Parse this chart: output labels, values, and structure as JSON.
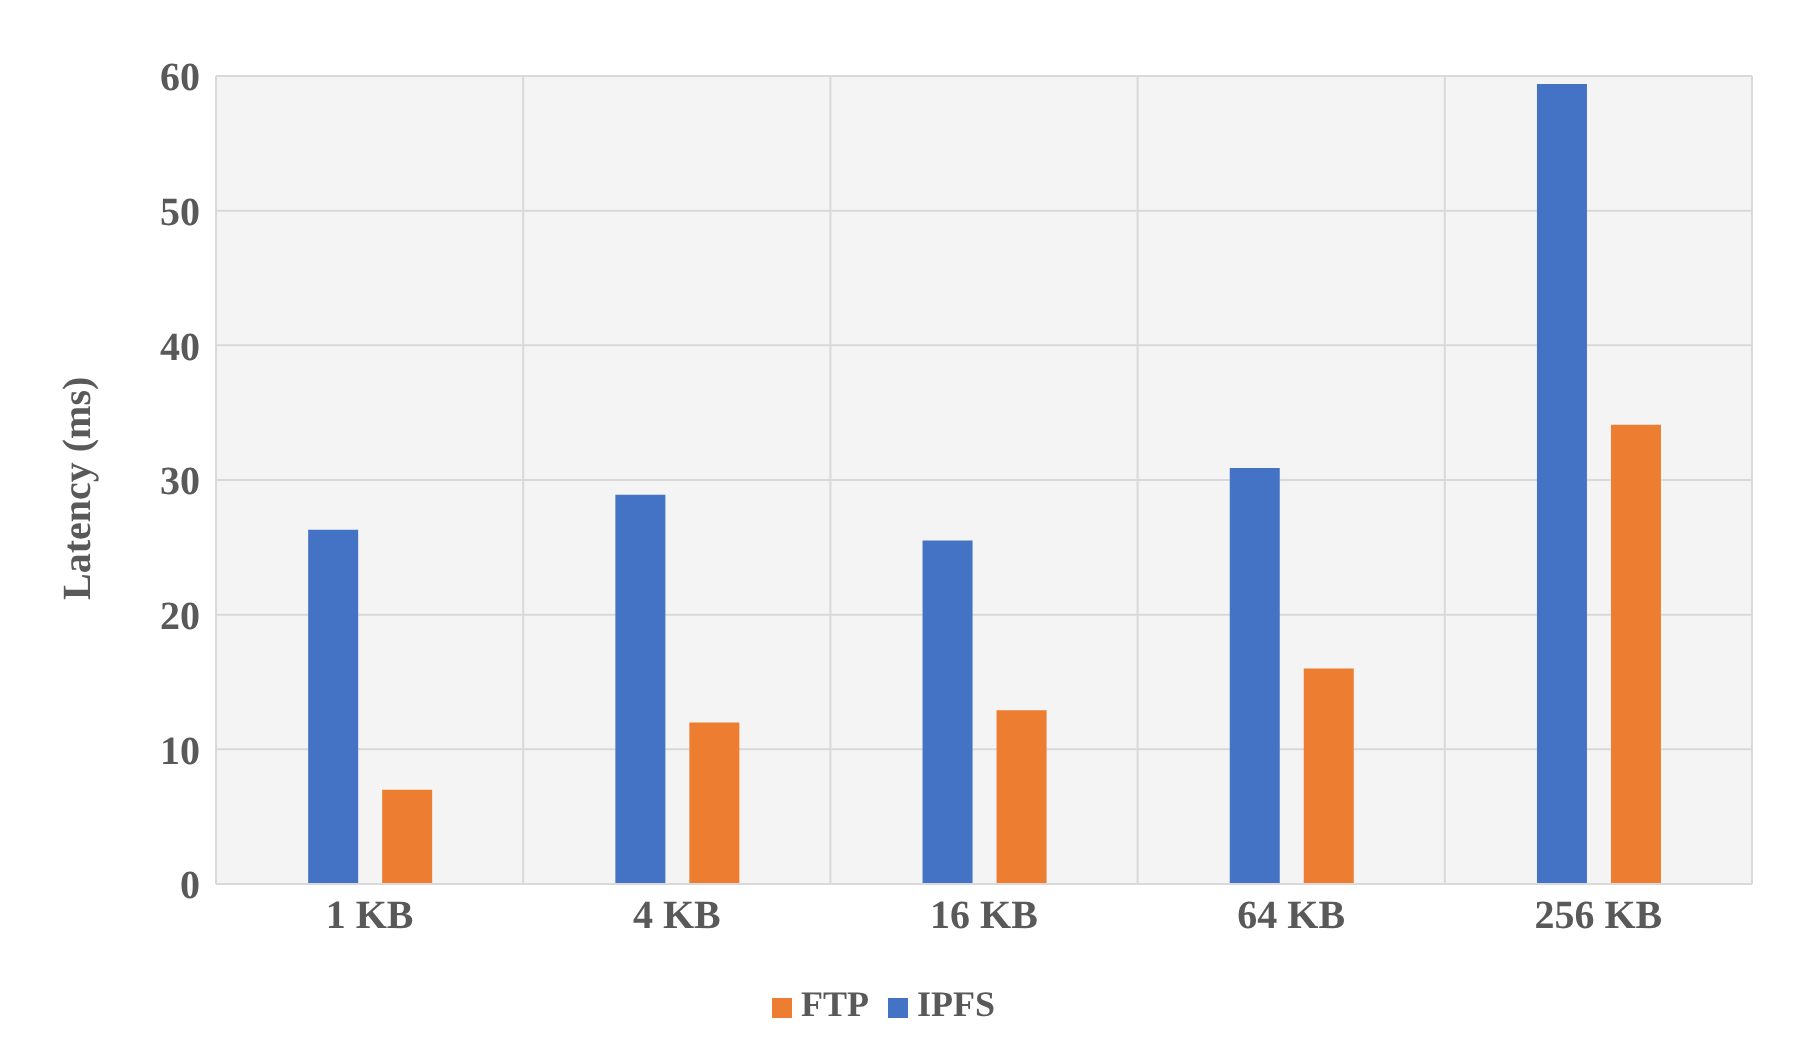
{
  "chart_data": {
    "type": "bar",
    "ylabel": "Latency (ms)",
    "categories": [
      "1 KB",
      "4 KB",
      "16 KB",
      "64 KB",
      "256 KB"
    ],
    "series": [
      {
        "name": "IPFS",
        "color": "#4472c4",
        "values": [
          26.3,
          28.9,
          25.5,
          30.9,
          59.4
        ]
      },
      {
        "name": "FTP",
        "color": "#ed7d31",
        "values": [
          7.0,
          12.0,
          12.9,
          16.0,
          34.1
        ]
      }
    ],
    "ylim": [
      0,
      60
    ],
    "yticks": [
      0,
      10,
      20,
      30,
      40,
      50,
      60
    ],
    "grid": true,
    "legend": "bottom"
  }
}
